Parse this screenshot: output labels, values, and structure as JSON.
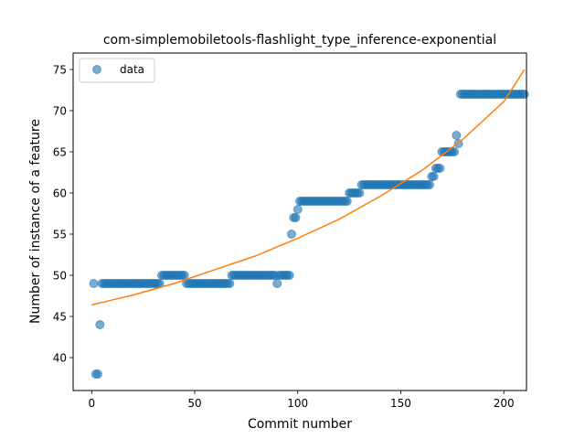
{
  "chart_data": {
    "type": "scatter",
    "title": "com-simplemobiletools-flashlight_type_inference-exponential",
    "xlabel": "Commit number",
    "ylabel": "Number of instance of a feature",
    "xlim": [
      -9,
      211
    ],
    "ylim": [
      36,
      77
    ],
    "xticks": [
      0,
      50,
      100,
      150,
      200
    ],
    "yticks": [
      40,
      45,
      50,
      55,
      60,
      65,
      70,
      75
    ],
    "grid": false,
    "legend": {
      "position": "top-left",
      "entries": [
        "data"
      ]
    },
    "colors": {
      "data": "#1f77b4",
      "fit": "#ff7f0e"
    },
    "series": [
      {
        "name": "data",
        "kind": "scatter",
        "segments": [
          {
            "x": [
              1
            ],
            "y": 49
          },
          {
            "x": [
              2,
              3
            ],
            "y": 38
          },
          {
            "x": [
              4
            ],
            "y": 44
          },
          {
            "x": [
              5,
              33
            ],
            "y": 49
          },
          {
            "x": [
              34,
              45
            ],
            "y": 50
          },
          {
            "x": [
              46,
              67
            ],
            "y": 49
          },
          {
            "x": [
              68,
              89
            ],
            "y": 50
          },
          {
            "x": [
              90
            ],
            "y": 49
          },
          {
            "x": [
              91,
              96
            ],
            "y": 50
          },
          {
            "x": [
              97
            ],
            "y": 55
          },
          {
            "x": [
              98,
              99
            ],
            "y": 57
          },
          {
            "x": [
              100
            ],
            "y": 58
          },
          {
            "x": [
              101,
              124
            ],
            "y": 59
          },
          {
            "x": [
              125,
              130
            ],
            "y": 60
          },
          {
            "x": [
              131,
              164
            ],
            "y": 61
          },
          {
            "x": [
              165,
              166
            ],
            "y": 62
          },
          {
            "x": [
              167,
              169
            ],
            "y": 63
          },
          {
            "x": [
              170,
              176
            ],
            "y": 65
          },
          {
            "x": [
              177
            ],
            "y": 67
          },
          {
            "x": [
              178
            ],
            "y": 66
          },
          {
            "x": [
              179,
              210
            ],
            "y": 72
          }
        ]
      },
      {
        "kind": "line",
        "fit": "exponential",
        "x": [
          0,
          20,
          40,
          60,
          80,
          100,
          120,
          140,
          160,
          180,
          200,
          210
        ],
        "y": [
          46.4,
          47.6,
          49.0,
          50.7,
          52.4,
          54.5,
          56.8,
          59.6,
          62.7,
          66.5,
          71.1,
          75.0
        ]
      }
    ]
  }
}
